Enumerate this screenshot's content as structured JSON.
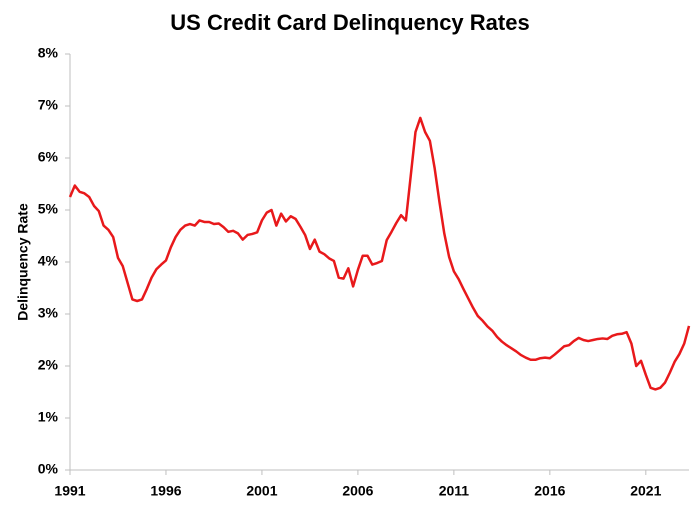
{
  "chart_data": {
    "type": "line",
    "title": "US Credit Card Delinquency Rates",
    "y_label": "Delinquency Rate",
    "x": [
      1991,
      1991.25,
      1991.5,
      1991.75,
      1992,
      1992.25,
      1992.5,
      1992.75,
      1993,
      1993.25,
      1993.5,
      1993.75,
      1994,
      1994.25,
      1994.5,
      1994.75,
      1995,
      1995.25,
      1995.5,
      1995.75,
      1996,
      1996.25,
      1996.5,
      1996.75,
      1997,
      1997.25,
      1997.5,
      1997.75,
      1998,
      1998.25,
      1998.5,
      1998.75,
      1999,
      1999.25,
      1999.5,
      1999.75,
      2000,
      2000.25,
      2000.5,
      2000.75,
      2001,
      2001.25,
      2001.5,
      2001.75,
      2002,
      2002.25,
      2002.5,
      2002.75,
      2003,
      2003.25,
      2003.5,
      2003.75,
      2004,
      2004.25,
      2004.5,
      2004.75,
      2005,
      2005.25,
      2005.5,
      2005.75,
      2006,
      2006.25,
      2006.5,
      2006.75,
      2007,
      2007.25,
      2007.5,
      2007.75,
      2008,
      2008.25,
      2008.5,
      2008.75,
      2009,
      2009.25,
      2009.5,
      2009.75,
      2010,
      2010.25,
      2010.5,
      2010.75,
      2011,
      2011.25,
      2011.5,
      2011.75,
      2012,
      2012.25,
      2012.5,
      2012.75,
      2013,
      2013.25,
      2013.5,
      2013.75,
      2014,
      2014.25,
      2014.5,
      2014.75,
      2015,
      2015.25,
      2015.5,
      2015.75,
      2016,
      2016.25,
      2016.5,
      2016.75,
      2017,
      2017.25,
      2017.5,
      2017.75,
      2018,
      2018.25,
      2018.5,
      2018.75,
      2019,
      2019.25,
      2019.5,
      2019.75,
      2020,
      2020.25,
      2020.5,
      2020.75,
      2021,
      2021.25,
      2021.5,
      2021.75,
      2022,
      2022.25,
      2022.5,
      2022.75,
      2023,
      2023.25
    ],
    "series": [
      {
        "name": "Delinquency Rate",
        "color": "#e8191b",
        "values": [
          5.25,
          5.47,
          5.35,
          5.32,
          5.25,
          5.08,
          4.98,
          4.7,
          4.62,
          4.48,
          4.08,
          3.92,
          3.6,
          3.28,
          3.25,
          3.28,
          3.48,
          3.7,
          3.86,
          3.95,
          4.03,
          4.28,
          4.48,
          4.62,
          4.7,
          4.73,
          4.7,
          4.8,
          4.77,
          4.77,
          4.73,
          4.74,
          4.67,
          4.58,
          4.6,
          4.55,
          4.43,
          4.52,
          4.54,
          4.57,
          4.8,
          4.95,
          5.0,
          4.7,
          4.93,
          4.78,
          4.88,
          4.83,
          4.68,
          4.52,
          4.25,
          4.43,
          4.2,
          4.15,
          4.07,
          4.02,
          3.7,
          3.68,
          3.88,
          3.53,
          3.85,
          4.12,
          4.12,
          3.95,
          3.98,
          4.02,
          4.42,
          4.58,
          4.75,
          4.9,
          4.8,
          5.65,
          6.5,
          6.77,
          6.5,
          6.33,
          5.8,
          5.15,
          4.55,
          4.1,
          3.82,
          3.67,
          3.48,
          3.3,
          3.12,
          2.96,
          2.87,
          2.76,
          2.68,
          2.56,
          2.47,
          2.4,
          2.34,
          2.28,
          2.21,
          2.16,
          2.12,
          2.12,
          2.15,
          2.16,
          2.15,
          2.22,
          2.3,
          2.38,
          2.4,
          2.48,
          2.54,
          2.5,
          2.48,
          2.5,
          2.52,
          2.53,
          2.52,
          2.58,
          2.61,
          2.62,
          2.65,
          2.43,
          2.0,
          2.1,
          1.83,
          1.58,
          1.55,
          1.58,
          1.68,
          1.87,
          2.08,
          2.23,
          2.43,
          2.77
        ]
      }
    ],
    "xlim": [
      1991,
      2023.25
    ],
    "xticks": [
      1991,
      1996,
      2001,
      2006,
      2011,
      2016,
      2021
    ],
    "ylim": [
      0,
      8
    ],
    "yticks": [
      {
        "value": 0,
        "label": "0%"
      },
      {
        "value": 1,
        "label": "1%"
      },
      {
        "value": 2,
        "label": "2%"
      },
      {
        "value": 3,
        "label": "3%"
      },
      {
        "value": 4,
        "label": "4%"
      },
      {
        "value": 5,
        "label": "5%"
      },
      {
        "value": 6,
        "label": "6%"
      },
      {
        "value": 7,
        "label": "7%"
      },
      {
        "value": 8,
        "label": "8%"
      }
    ],
    "grid": false
  }
}
